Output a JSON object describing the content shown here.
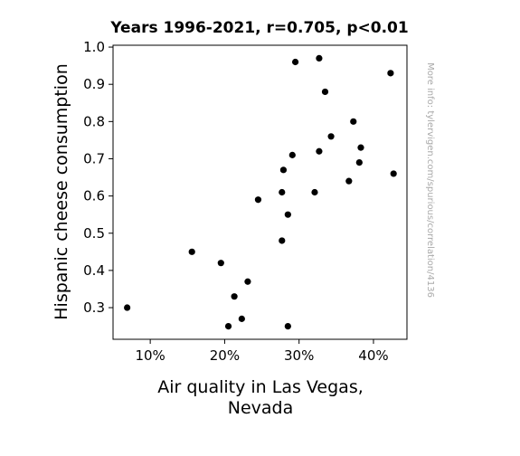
{
  "chart_data": {
    "type": "scatter",
    "title": "Years 1996-2021, r=0.705, p<0.01",
    "xlabel": "Air quality in Las Vegas, Nevada",
    "xlabel_lines": [
      "Air quality in Las Vegas,",
      "Nevada"
    ],
    "ylabel": "Hispanic cheese consumption",
    "side_note": "More info: tylervigen.com/spurious/correlation/4136",
    "xlim": [
      0.05,
      0.445
    ],
    "ylim": [
      0.215,
      1.005
    ],
    "xticks": [
      {
        "value": 0.1,
        "label": "10%"
      },
      {
        "value": 0.2,
        "label": "20%"
      },
      {
        "value": 0.3,
        "label": "30%"
      },
      {
        "value": 0.4,
        "label": "40%"
      }
    ],
    "yticks": [
      {
        "value": 0.3,
        "label": "0.3"
      },
      {
        "value": 0.4,
        "label": "0.4"
      },
      {
        "value": 0.5,
        "label": "0.5"
      },
      {
        "value": 0.6,
        "label": "0.6"
      },
      {
        "value": 0.7,
        "label": "0.7"
      },
      {
        "value": 0.8,
        "label": "0.8"
      },
      {
        "value": 0.9,
        "label": "0.9"
      },
      {
        "value": 1.0,
        "label": "1.0"
      }
    ],
    "grid": false,
    "marker_color": "#000000",
    "points": [
      {
        "x": 0.069,
        "y": 0.3
      },
      {
        "x": 0.156,
        "y": 0.45
      },
      {
        "x": 0.195,
        "y": 0.42
      },
      {
        "x": 0.205,
        "y": 0.25
      },
      {
        "x": 0.213,
        "y": 0.33
      },
      {
        "x": 0.223,
        "y": 0.27
      },
      {
        "x": 0.231,
        "y": 0.37
      },
      {
        "x": 0.245,
        "y": 0.59
      },
      {
        "x": 0.277,
        "y": 0.61
      },
      {
        "x": 0.277,
        "y": 0.48
      },
      {
        "x": 0.279,
        "y": 0.67
      },
      {
        "x": 0.285,
        "y": 0.55
      },
      {
        "x": 0.285,
        "y": 0.25
      },
      {
        "x": 0.291,
        "y": 0.71
      },
      {
        "x": 0.295,
        "y": 0.96
      },
      {
        "x": 0.321,
        "y": 0.61
      },
      {
        "x": 0.327,
        "y": 0.97
      },
      {
        "x": 0.327,
        "y": 0.72
      },
      {
        "x": 0.335,
        "y": 0.88
      },
      {
        "x": 0.343,
        "y": 0.76
      },
      {
        "x": 0.367,
        "y": 0.64
      },
      {
        "x": 0.373,
        "y": 0.8
      },
      {
        "x": 0.381,
        "y": 0.69
      },
      {
        "x": 0.383,
        "y": 0.73
      },
      {
        "x": 0.423,
        "y": 0.93
      },
      {
        "x": 0.427,
        "y": 0.66
      }
    ]
  }
}
